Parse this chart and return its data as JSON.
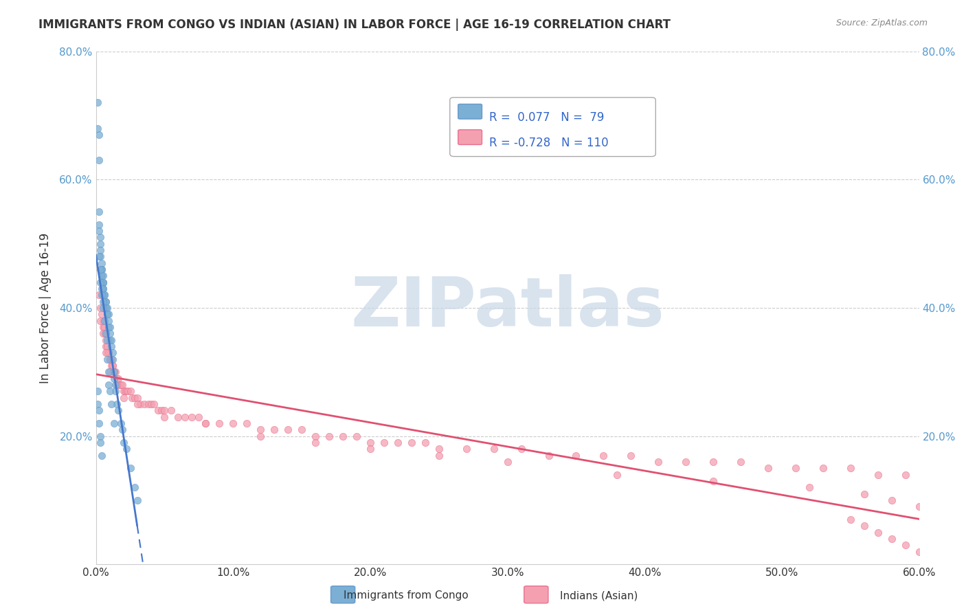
{
  "title": "IMMIGRANTS FROM CONGO VS INDIAN (ASIAN) IN LABOR FORCE | AGE 16-19 CORRELATION CHART",
  "source": "Source: ZipAtlas.com",
  "xlabel": "",
  "ylabel": "In Labor Force | Age 16-19",
  "xlim": [
    0.0,
    0.6
  ],
  "ylim": [
    0.0,
    0.8
  ],
  "xtick_labels": [
    "0.0%",
    "10.0%",
    "20.0%",
    "30.0%",
    "40.0%",
    "50.0%",
    "60.0%"
  ],
  "xtick_vals": [
    0.0,
    0.1,
    0.2,
    0.3,
    0.4,
    0.5,
    0.6
  ],
  "ytick_labels": [
    "20.0%",
    "40.0%",
    "60.0%",
    "80.0%"
  ],
  "ytick_vals": [
    0.2,
    0.4,
    0.6,
    0.8
  ],
  "congo_R": 0.077,
  "congo_N": 79,
  "indian_R": -0.728,
  "indian_N": 110,
  "congo_color": "#7bafd4",
  "congo_edge": "#6699cc",
  "indian_color": "#f4a0b0",
  "indian_edge": "#e87090",
  "congo_trend_color": "#4477cc",
  "indian_trend_color": "#e05070",
  "watermark": "ZIPatlas",
  "watermark_color": "#c8d8e8",
  "legend1_label": "Immigrants from Congo",
  "legend2_label": "Indians (Asian)",
  "congo_x": [
    0.002,
    0.002,
    0.002,
    0.003,
    0.003,
    0.003,
    0.003,
    0.004,
    0.004,
    0.004,
    0.004,
    0.004,
    0.005,
    0.005,
    0.005,
    0.005,
    0.005,
    0.005,
    0.005,
    0.006,
    0.006,
    0.006,
    0.007,
    0.007,
    0.007,
    0.007,
    0.008,
    0.008,
    0.008,
    0.009,
    0.009,
    0.009,
    0.01,
    0.01,
    0.01,
    0.011,
    0.011,
    0.012,
    0.012,
    0.013,
    0.013,
    0.014,
    0.014,
    0.015,
    0.016,
    0.018,
    0.019,
    0.02,
    0.022,
    0.025,
    0.028,
    0.03,
    0.001,
    0.001,
    0.002,
    0.002,
    0.002,
    0.003,
    0.003,
    0.004,
    0.004,
    0.005,
    0.005,
    0.006,
    0.007,
    0.008,
    0.008,
    0.009,
    0.009,
    0.01,
    0.011,
    0.013,
    0.001,
    0.001,
    0.002,
    0.002,
    0.003,
    0.003,
    0.004
  ],
  "congo_y": [
    0.67,
    0.63,
    0.53,
    0.51,
    0.5,
    0.49,
    0.48,
    0.47,
    0.46,
    0.46,
    0.45,
    0.45,
    0.45,
    0.44,
    0.44,
    0.44,
    0.43,
    0.43,
    0.42,
    0.42,
    0.42,
    0.41,
    0.41,
    0.41,
    0.4,
    0.4,
    0.4,
    0.39,
    0.39,
    0.39,
    0.38,
    0.37,
    0.37,
    0.36,
    0.35,
    0.35,
    0.34,
    0.33,
    0.32,
    0.3,
    0.29,
    0.28,
    0.27,
    0.25,
    0.24,
    0.22,
    0.21,
    0.19,
    0.18,
    0.15,
    0.12,
    0.1,
    0.72,
    0.68,
    0.55,
    0.52,
    0.48,
    0.46,
    0.44,
    0.43,
    0.42,
    0.41,
    0.4,
    0.38,
    0.36,
    0.35,
    0.32,
    0.3,
    0.28,
    0.27,
    0.25,
    0.22,
    0.27,
    0.25,
    0.24,
    0.22,
    0.2,
    0.19,
    0.17
  ],
  "indian_x": [
    0.002,
    0.003,
    0.004,
    0.005,
    0.005,
    0.006,
    0.006,
    0.007,
    0.007,
    0.007,
    0.008,
    0.008,
    0.009,
    0.009,
    0.01,
    0.01,
    0.011,
    0.011,
    0.012,
    0.012,
    0.013,
    0.013,
    0.014,
    0.015,
    0.016,
    0.017,
    0.018,
    0.019,
    0.02,
    0.021,
    0.022,
    0.023,
    0.025,
    0.026,
    0.028,
    0.03,
    0.032,
    0.035,
    0.038,
    0.04,
    0.042,
    0.045,
    0.048,
    0.05,
    0.055,
    0.06,
    0.065,
    0.07,
    0.075,
    0.08,
    0.09,
    0.1,
    0.11,
    0.12,
    0.13,
    0.14,
    0.15,
    0.16,
    0.17,
    0.18,
    0.19,
    0.2,
    0.21,
    0.22,
    0.23,
    0.24,
    0.25,
    0.27,
    0.29,
    0.31,
    0.33,
    0.35,
    0.37,
    0.39,
    0.41,
    0.43,
    0.45,
    0.47,
    0.49,
    0.51,
    0.53,
    0.55,
    0.57,
    0.59,
    0.003,
    0.005,
    0.007,
    0.01,
    0.015,
    0.02,
    0.03,
    0.05,
    0.08,
    0.12,
    0.16,
    0.2,
    0.25,
    0.3,
    0.38,
    0.45,
    0.52,
    0.56,
    0.58,
    0.6,
    0.55,
    0.56,
    0.57,
    0.58,
    0.59,
    0.6
  ],
  "indian_y": [
    0.42,
    0.4,
    0.39,
    0.38,
    0.37,
    0.37,
    0.36,
    0.36,
    0.35,
    0.34,
    0.34,
    0.33,
    0.33,
    0.33,
    0.32,
    0.32,
    0.32,
    0.31,
    0.31,
    0.31,
    0.3,
    0.3,
    0.3,
    0.29,
    0.29,
    0.28,
    0.28,
    0.28,
    0.27,
    0.27,
    0.27,
    0.27,
    0.27,
    0.26,
    0.26,
    0.26,
    0.25,
    0.25,
    0.25,
    0.25,
    0.25,
    0.24,
    0.24,
    0.24,
    0.24,
    0.23,
    0.23,
    0.23,
    0.23,
    0.22,
    0.22,
    0.22,
    0.22,
    0.21,
    0.21,
    0.21,
    0.21,
    0.2,
    0.2,
    0.2,
    0.2,
    0.19,
    0.19,
    0.19,
    0.19,
    0.19,
    0.18,
    0.18,
    0.18,
    0.18,
    0.17,
    0.17,
    0.17,
    0.17,
    0.16,
    0.16,
    0.16,
    0.16,
    0.15,
    0.15,
    0.15,
    0.15,
    0.14,
    0.14,
    0.38,
    0.36,
    0.33,
    0.3,
    0.28,
    0.26,
    0.25,
    0.23,
    0.22,
    0.2,
    0.19,
    0.18,
    0.17,
    0.16,
    0.14,
    0.13,
    0.12,
    0.11,
    0.1,
    0.09,
    0.07,
    0.06,
    0.05,
    0.04,
    0.03,
    0.02
  ]
}
